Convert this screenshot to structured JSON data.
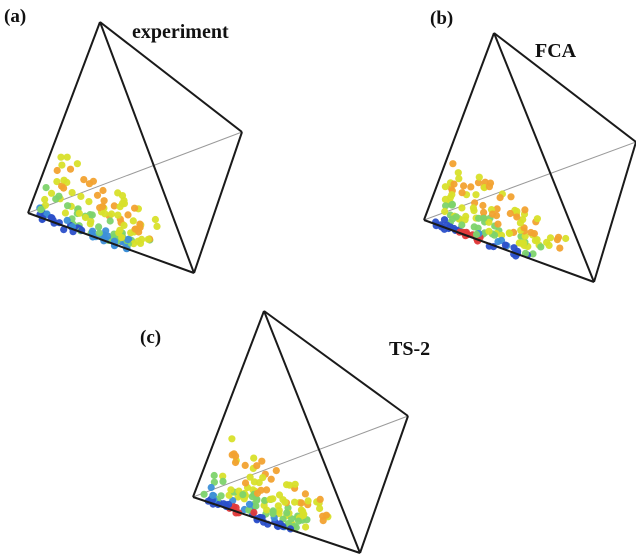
{
  "panels": [
    {
      "label": "(a)",
      "title": "experiment"
    },
    {
      "label": "(b)",
      "title": "FCA"
    },
    {
      "label": "(c)",
      "title": "TS-2"
    }
  ],
  "colors": {
    "edge": "#1a1a1a",
    "hidden_edge": "#9a9a9a",
    "scale": [
      "#2b4fc9",
      "#3d8fd8",
      "#7dd36c",
      "#d8e02a",
      "#f2a230",
      "#e03a3a"
    ]
  }
}
